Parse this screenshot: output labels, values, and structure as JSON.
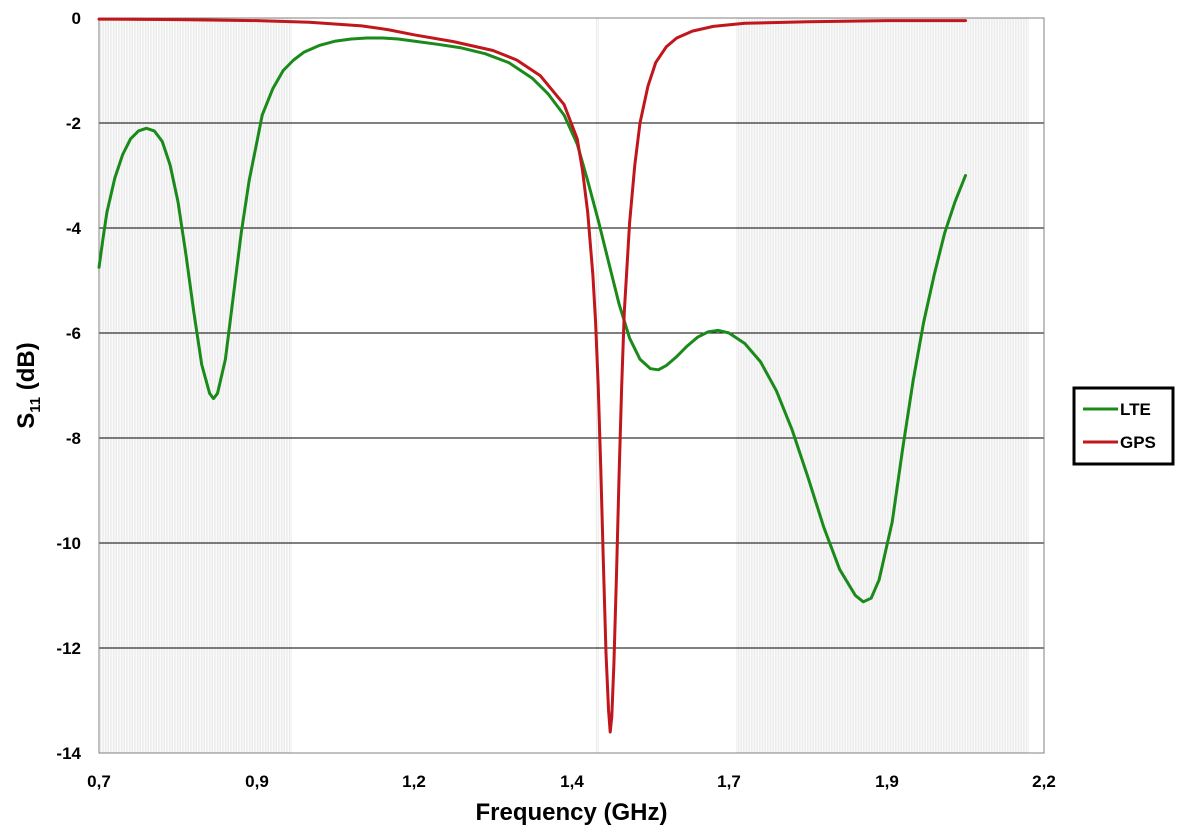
{
  "chart_data": {
    "type": "line",
    "title": "",
    "xlabel": "Frequency (GHz)",
    "ylabel": {
      "main": "S",
      "sub": "11",
      "suffix": " (dB)"
    },
    "xlim": [
      0.7,
      2.2
    ],
    "ylim": [
      -14,
      0
    ],
    "x_ticks": [
      {
        "value": 0.7,
        "label": "0,7"
      },
      {
        "value": 0.9,
        "label": "0,9"
      },
      {
        "value": 1.2,
        "label": "1,2"
      },
      {
        "value": 1.4,
        "label": "1,4"
      },
      {
        "value": 1.7,
        "label": "1,7"
      },
      {
        "value": 1.9,
        "label": "1,9"
      },
      {
        "value": 2.2,
        "label": "2,2"
      }
    ],
    "x_tick_positions_note": "",
    "y_ticks": [
      {
        "value": 0,
        "label": "0"
      },
      {
        "value": -2,
        "label": "-2"
      },
      {
        "value": -4,
        "label": "-4"
      },
      {
        "value": -6,
        "label": "-6"
      },
      {
        "value": -8,
        "label": "-8"
      },
      {
        "value": -10,
        "label": "-10"
      },
      {
        "value": -12,
        "label": "-12"
      },
      {
        "value": -14,
        "label": "-14"
      }
    ],
    "grid": "horizontal",
    "legend_position": "right",
    "shaded_bands": [
      {
        "from": 0.7,
        "to": 0.965
      },
      {
        "from": 1.447,
        "to": 1.452
      },
      {
        "from": 1.71,
        "to": 2.17
      }
    ],
    "series": [
      {
        "name": "LTE",
        "color": "#1a8a1a",
        "points": [
          [
            0.7,
            -4.75
          ],
          [
            0.705,
            -4.2
          ],
          [
            0.71,
            -3.7
          ],
          [
            0.72,
            -3.05
          ],
          [
            0.73,
            -2.6
          ],
          [
            0.74,
            -2.3
          ],
          [
            0.75,
            -2.15
          ],
          [
            0.76,
            -2.1
          ],
          [
            0.77,
            -2.15
          ],
          [
            0.78,
            -2.35
          ],
          [
            0.79,
            -2.8
          ],
          [
            0.8,
            -3.5
          ],
          [
            0.81,
            -4.5
          ],
          [
            0.82,
            -5.6
          ],
          [
            0.83,
            -6.6
          ],
          [
            0.84,
            -7.15
          ],
          [
            0.845,
            -7.25
          ],
          [
            0.85,
            -7.15
          ],
          [
            0.86,
            -6.5
          ],
          [
            0.87,
            -5.3
          ],
          [
            0.88,
            -4.1
          ],
          [
            0.89,
            -3.1
          ],
          [
            0.9,
            -2.35
          ],
          [
            0.91,
            -1.85
          ],
          [
            0.93,
            -1.35
          ],
          [
            0.95,
            -1.0
          ],
          [
            0.97,
            -0.8
          ],
          [
            0.99,
            -0.65
          ],
          [
            1.02,
            -0.52
          ],
          [
            1.05,
            -0.44
          ],
          [
            1.08,
            -0.4
          ],
          [
            1.11,
            -0.38
          ],
          [
            1.14,
            -0.38
          ],
          [
            1.17,
            -0.4
          ],
          [
            1.2,
            -0.44
          ],
          [
            1.23,
            -0.5
          ],
          [
            1.26,
            -0.57
          ],
          [
            1.29,
            -0.68
          ],
          [
            1.32,
            -0.85
          ],
          [
            1.35,
            -1.15
          ],
          [
            1.37,
            -1.45
          ],
          [
            1.39,
            -1.85
          ],
          [
            1.41,
            -2.4
          ],
          [
            1.43,
            -3.1
          ],
          [
            1.45,
            -3.85
          ],
          [
            1.47,
            -4.65
          ],
          [
            1.49,
            -5.45
          ],
          [
            1.51,
            -6.1
          ],
          [
            1.53,
            -6.5
          ],
          [
            1.55,
            -6.68
          ],
          [
            1.565,
            -6.7
          ],
          [
            1.58,
            -6.62
          ],
          [
            1.6,
            -6.45
          ],
          [
            1.62,
            -6.25
          ],
          [
            1.64,
            -6.08
          ],
          [
            1.66,
            -5.98
          ],
          [
            1.68,
            -5.95
          ],
          [
            1.7,
            -6.0
          ],
          [
            1.72,
            -6.2
          ],
          [
            1.74,
            -6.55
          ],
          [
            1.76,
            -7.1
          ],
          [
            1.78,
            -7.85
          ],
          [
            1.8,
            -8.75
          ],
          [
            1.82,
            -9.7
          ],
          [
            1.84,
            -10.5
          ],
          [
            1.86,
            -11.0
          ],
          [
            1.87,
            -11.12
          ],
          [
            1.88,
            -11.05
          ],
          [
            1.89,
            -10.7
          ],
          [
            1.91,
            -9.6
          ],
          [
            1.93,
            -8.2
          ],
          [
            1.95,
            -6.9
          ],
          [
            1.97,
            -5.8
          ],
          [
            1.99,
            -4.9
          ],
          [
            2.01,
            -4.1
          ],
          [
            2.03,
            -3.5
          ],
          [
            2.05,
            -3.0
          ]
        ]
      },
      {
        "name": "GPS",
        "color": "#c0161c",
        "points": [
          [
            0.7,
            -0.02
          ],
          [
            0.8,
            -0.03
          ],
          [
            0.9,
            -0.05
          ],
          [
            1.0,
            -0.08
          ],
          [
            1.1,
            -0.15
          ],
          [
            1.15,
            -0.22
          ],
          [
            1.2,
            -0.32
          ],
          [
            1.25,
            -0.45
          ],
          [
            1.3,
            -0.62
          ],
          [
            1.33,
            -0.8
          ],
          [
            1.36,
            -1.1
          ],
          [
            1.39,
            -1.65
          ],
          [
            1.41,
            -2.3
          ],
          [
            1.42,
            -2.9
          ],
          [
            1.43,
            -3.7
          ],
          [
            1.44,
            -4.9
          ],
          [
            1.445,
            -5.8
          ],
          [
            1.45,
            -7.0
          ],
          [
            1.455,
            -8.6
          ],
          [
            1.46,
            -10.4
          ],
          [
            1.465,
            -12.1
          ],
          [
            1.47,
            -13.2
          ],
          [
            1.473,
            -13.6
          ],
          [
            1.476,
            -13.3
          ],
          [
            1.48,
            -12.3
          ],
          [
            1.485,
            -10.6
          ],
          [
            1.49,
            -8.7
          ],
          [
            1.495,
            -7.0
          ],
          [
            1.5,
            -5.6
          ],
          [
            1.51,
            -3.9
          ],
          [
            1.52,
            -2.8
          ],
          [
            1.53,
            -2.0
          ],
          [
            1.545,
            -1.3
          ],
          [
            1.56,
            -0.85
          ],
          [
            1.58,
            -0.55
          ],
          [
            1.6,
            -0.38
          ],
          [
            1.63,
            -0.25
          ],
          [
            1.67,
            -0.16
          ],
          [
            1.72,
            -0.1
          ],
          [
            1.8,
            -0.07
          ],
          [
            1.9,
            -0.05
          ],
          [
            2.05,
            -0.05
          ]
        ]
      }
    ]
  }
}
